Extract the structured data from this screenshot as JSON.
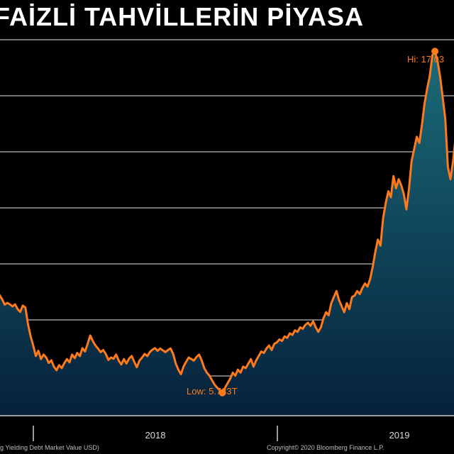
{
  "title": "FAİZLİ TAHVİLLERİN PİYASA",
  "footer": {
    "source_left": "g Yielding Debt Market Value USD)",
    "source_right": "Copyright© 2020 Bloomberg Finance L.P."
  },
  "colors": {
    "line": "#ff7a1a",
    "grid": "#9a9a9a",
    "fill_top": "#1a6b78",
    "fill_bottom": "#06213b",
    "background": "#000000"
  },
  "chart_data": {
    "type": "area",
    "title": "",
    "xlabel": "",
    "ylabel": "",
    "x_ticks": [
      "2018",
      "2019"
    ],
    "ylim": [
      5.0,
      17.6
    ],
    "grid": "horizontal",
    "annotations": [
      {
        "label": "Hi: 17.03",
        "value": 17.03
      },
      {
        "label": "Low: 5.733T",
        "value": 5.733
      }
    ],
    "series": [
      {
        "values": [
          8.87,
          8.7,
          8.97,
          8.83,
          8.65,
          8.71,
          8.66,
          8.59,
          8.66,
          8.5,
          8.41,
          8.62,
          8.55,
          8.0,
          7.6,
          7.3,
          6.95,
          7.12,
          6.85,
          7.0,
          6.9,
          6.72,
          6.81,
          6.6,
          6.48,
          6.65,
          6.55,
          6.71,
          6.85,
          6.74,
          7.0,
          6.88,
          7.05,
          6.95,
          7.21,
          7.1,
          7.35,
          7.63,
          7.45,
          7.3,
          7.2,
          7.08,
          7.15,
          7.02,
          6.82,
          6.9,
          6.86,
          7.0,
          6.8,
          6.67,
          6.85,
          6.7,
          6.87,
          6.95,
          6.76,
          6.58,
          6.8,
          6.9,
          7.02,
          6.95,
          7.08,
          7.16,
          7.21,
          7.12,
          7.2,
          7.14,
          7.08,
          7.15,
          7.2,
          7.02,
          6.7,
          6.5,
          6.35,
          6.6,
          6.76,
          6.9,
          6.85,
          6.8,
          6.92,
          7.0,
          6.81,
          6.55,
          6.4,
          6.3,
          6.15,
          6.0,
          5.9,
          5.82,
          5.733,
          5.9,
          6.05,
          6.2,
          6.4,
          6.3,
          6.5,
          6.4,
          6.6,
          6.55,
          6.7,
          6.85,
          6.6,
          6.8,
          6.95,
          7.1,
          7.05,
          7.2,
          7.3,
          7.15,
          7.35,
          7.4,
          7.5,
          7.45,
          7.6,
          7.55,
          7.7,
          7.65,
          7.8,
          7.75,
          7.9,
          7.85,
          7.98,
          8.05,
          7.95,
          8.1,
          7.9,
          7.75,
          7.9,
          8.2,
          8.4,
          8.3,
          8.7,
          8.9,
          9.1,
          8.8,
          8.6,
          8.4,
          8.7,
          8.5,
          8.9,
          8.95,
          9.1,
          9.0,
          9.2,
          9.35,
          9.25,
          9.5,
          9.9,
          10.4,
          10.8,
          10.6,
          11.5,
          12.0,
          12.4,
          12.2,
          12.9,
          12.5,
          12.8,
          12.6,
          12.3,
          11.8,
          12.5,
          13.4,
          13.8,
          14.2,
          14.0,
          14.6,
          15.3,
          15.8,
          16.2,
          16.9,
          17.03,
          16.7,
          16.2,
          15.5,
          14.8,
          13.2,
          12.8,
          13.4,
          14.2,
          14.5
        ]
      }
    ]
  }
}
